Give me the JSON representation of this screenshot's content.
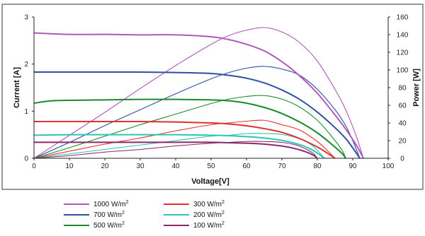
{
  "chart_data": {
    "type": "line",
    "xlabel": "Voltage[V]",
    "ylabel_left": "Current [A]",
    "ylabel_right": "Power [W]",
    "xlim": [
      0,
      100
    ],
    "ylim_left": [
      0,
      3
    ],
    "ylim_right": [
      0,
      160
    ],
    "x_ticks": [
      "0",
      "10",
      "20",
      "30",
      "40",
      "50",
      "60",
      "70",
      "80",
      "90",
      "100"
    ],
    "y_left_ticks": [
      "0",
      "1",
      "2",
      "3"
    ],
    "y_right_ticks": [
      "0",
      "20",
      "40",
      "60",
      "80",
      "100",
      "120",
      "140",
      "160"
    ],
    "grid": false,
    "legend_position": "bottom-left",
    "legend_unit": "W/m",
    "legend_unit_sup": "2",
    "series": [
      {
        "name": "1000 W/m2",
        "irradiance": "1000",
        "color": "#b05ab8",
        "iv": [
          [
            0,
            2.66
          ],
          [
            10,
            2.63
          ],
          [
            20,
            2.63
          ],
          [
            30,
            2.62
          ],
          [
            40,
            2.62
          ],
          [
            50,
            2.58
          ],
          [
            55,
            2.52
          ],
          [
            60,
            2.42
          ],
          [
            65,
            2.28
          ],
          [
            70,
            2.05
          ],
          [
            75,
            1.75
          ],
          [
            80,
            1.38
          ],
          [
            85,
            0.92
          ],
          [
            88,
            0.62
          ],
          [
            91,
            0.28
          ],
          [
            93,
            0
          ]
        ],
        "pv": [
          [
            0,
            0
          ],
          [
            10,
            26
          ],
          [
            20,
            52
          ],
          [
            30,
            79
          ],
          [
            40,
            105
          ],
          [
            50,
            129
          ],
          [
            55,
            139
          ],
          [
            60,
            145
          ],
          [
            65,
            148
          ],
          [
            70,
            143
          ],
          [
            75,
            131
          ],
          [
            80,
            110
          ],
          [
            85,
            78
          ],
          [
            88,
            55
          ],
          [
            91,
            25
          ],
          [
            93,
            0
          ]
        ]
      },
      {
        "name": "700 W/m2",
        "irradiance": "700",
        "color": "#2f4fa0",
        "iv": [
          [
            0,
            1.83
          ],
          [
            10,
            1.83
          ],
          [
            20,
            1.83
          ],
          [
            30,
            1.83
          ],
          [
            40,
            1.82
          ],
          [
            50,
            1.8
          ],
          [
            55,
            1.76
          ],
          [
            60,
            1.7
          ],
          [
            65,
            1.6
          ],
          [
            70,
            1.45
          ],
          [
            75,
            1.25
          ],
          [
            80,
            0.98
          ],
          [
            85,
            0.65
          ],
          [
            88,
            0.42
          ],
          [
            90,
            0.22
          ],
          [
            92,
            0
          ]
        ],
        "pv": [
          [
            0,
            0
          ],
          [
            10,
            18
          ],
          [
            20,
            37
          ],
          [
            30,
            55
          ],
          [
            40,
            73
          ],
          [
            50,
            90
          ],
          [
            55,
            97
          ],
          [
            60,
            102
          ],
          [
            65,
            104
          ],
          [
            70,
            101
          ],
          [
            75,
            94
          ],
          [
            80,
            78
          ],
          [
            85,
            55
          ],
          [
            88,
            37
          ],
          [
            90,
            20
          ],
          [
            92,
            0
          ]
        ]
      },
      {
        "name": "500 W/m2",
        "irradiance": "500",
        "color": "#1a8a2e",
        "iv": [
          [
            0,
            1.17
          ],
          [
            5,
            1.22
          ],
          [
            10,
            1.23
          ],
          [
            20,
            1.24
          ],
          [
            30,
            1.25
          ],
          [
            40,
            1.25
          ],
          [
            50,
            1.24
          ],
          [
            55,
            1.22
          ],
          [
            60,
            1.17
          ],
          [
            65,
            1.08
          ],
          [
            70,
            0.95
          ],
          [
            75,
            0.77
          ],
          [
            80,
            0.54
          ],
          [
            84,
            0.3
          ],
          [
            87,
            0.1
          ],
          [
            88,
            0
          ]
        ],
        "pv": [
          [
            0,
            0
          ],
          [
            10,
            12
          ],
          [
            20,
            25
          ],
          [
            30,
            38
          ],
          [
            40,
            50
          ],
          [
            50,
            62
          ],
          [
            55,
            67
          ],
          [
            60,
            70
          ],
          [
            65,
            71
          ],
          [
            70,
            67
          ],
          [
            75,
            58
          ],
          [
            80,
            43
          ],
          [
            84,
            25
          ],
          [
            87,
            9
          ],
          [
            88,
            0
          ]
        ]
      },
      {
        "name": "300 W/m2",
        "irradiance": "300",
        "color": "#e03030",
        "iv": [
          [
            0,
            0.78
          ],
          [
            10,
            0.78
          ],
          [
            20,
            0.78
          ],
          [
            30,
            0.78
          ],
          [
            40,
            0.77
          ],
          [
            50,
            0.75
          ],
          [
            55,
            0.73
          ],
          [
            60,
            0.69
          ],
          [
            65,
            0.63
          ],
          [
            70,
            0.55
          ],
          [
            75,
            0.42
          ],
          [
            80,
            0.24
          ],
          [
            83,
            0.1
          ],
          [
            85,
            0
          ]
        ],
        "pv": [
          [
            0,
            0
          ],
          [
            10,
            8
          ],
          [
            20,
            16
          ],
          [
            30,
            23
          ],
          [
            40,
            31
          ],
          [
            50,
            38
          ],
          [
            55,
            40
          ],
          [
            60,
            42
          ],
          [
            65,
            43
          ],
          [
            70,
            38
          ],
          [
            75,
            32
          ],
          [
            80,
            19
          ],
          [
            83,
            8
          ],
          [
            85,
            0
          ]
        ]
      },
      {
        "name": "200 W/m2",
        "irradiance": "200",
        "color": "#2fc4b4",
        "iv": [
          [
            0,
            0.49
          ],
          [
            10,
            0.5
          ],
          [
            20,
            0.5
          ],
          [
            30,
            0.5
          ],
          [
            40,
            0.5
          ],
          [
            50,
            0.49
          ],
          [
            55,
            0.48
          ],
          [
            60,
            0.46
          ],
          [
            65,
            0.43
          ],
          [
            70,
            0.38
          ],
          [
            75,
            0.29
          ],
          [
            78,
            0.2
          ],
          [
            80,
            0.11
          ],
          [
            82,
            0
          ]
        ],
        "pv": [
          [
            0,
            0
          ],
          [
            10,
            5
          ],
          [
            20,
            10
          ],
          [
            30,
            15
          ],
          [
            40,
            20
          ],
          [
            50,
            25
          ],
          [
            55,
            26
          ],
          [
            60,
            28
          ],
          [
            65,
            28
          ],
          [
            70,
            27
          ],
          [
            75,
            22
          ],
          [
            78,
            16
          ],
          [
            80,
            9
          ],
          [
            82,
            0
          ]
        ]
      },
      {
        "name": "100 W/m2",
        "irradiance": "100",
        "color": "#8a2a6a",
        "iv": [
          [
            0,
            0.34
          ],
          [
            10,
            0.34
          ],
          [
            20,
            0.34
          ],
          [
            30,
            0.34
          ],
          [
            40,
            0.34
          ],
          [
            50,
            0.34
          ],
          [
            55,
            0.33
          ],
          [
            60,
            0.32
          ],
          [
            65,
            0.3
          ],
          [
            70,
            0.26
          ],
          [
            74,
            0.2
          ],
          [
            77,
            0.13
          ],
          [
            79,
            0.06
          ],
          [
            80,
            0
          ]
        ],
        "pv": [
          [
            0,
            0
          ],
          [
            10,
            3
          ],
          [
            20,
            7
          ],
          [
            30,
            10
          ],
          [
            40,
            14
          ],
          [
            50,
            17
          ],
          [
            55,
            18
          ],
          [
            60,
            19
          ],
          [
            65,
            19
          ],
          [
            70,
            18
          ],
          [
            74,
            15
          ],
          [
            77,
            10
          ],
          [
            79,
            5
          ],
          [
            80,
            0
          ]
        ]
      }
    ]
  }
}
